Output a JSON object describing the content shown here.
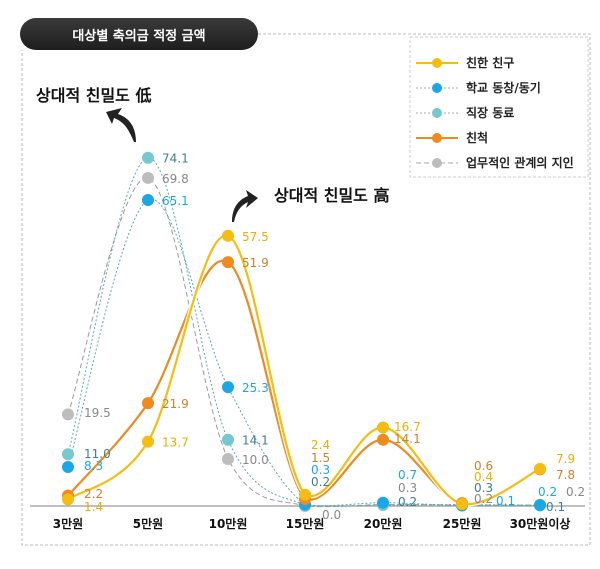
{
  "chart_data": {
    "type": "line",
    "title": "대상별 축의금 적정 금액",
    "categories": [
      "3만원",
      "5만원",
      "10만원",
      "15만원",
      "20만원",
      "25만원",
      "30만원이상"
    ],
    "ylim": [
      0,
      80
    ],
    "grid": false,
    "legend_position": "top-right",
    "series": [
      {
        "name": "친한 친구",
        "color": "#f5bd12",
        "label_color": "#e9b100",
        "style": "solid",
        "values": [
          1.4,
          13.7,
          57.5,
          2.4,
          16.7,
          0.4,
          7.9
        ]
      },
      {
        "name": "학교 동창/동기",
        "color": "#1ba6e4",
        "label_color": "#1ba6e4",
        "style": "dotted",
        "values": [
          8.3,
          65.1,
          25.3,
          0.3,
          0.7,
          0.1,
          0.2
        ]
      },
      {
        "name": "직장 동료",
        "color": "#76c8cf",
        "label_color": "#3f7f8c",
        "style": "dotted",
        "values": [
          11.0,
          74.1,
          14.1,
          0.2,
          0.2,
          0.3,
          0.1
        ]
      },
      {
        "name": "친척",
        "color": "#ee8a1e",
        "label_color": "#d07f2a",
        "style": "solid",
        "values": [
          2.2,
          21.9,
          51.9,
          1.5,
          14.1,
          0.6,
          7.8
        ]
      },
      {
        "name": "업무적인 관계의 지인",
        "color": "#bdbdbd",
        "label_color": "#888888",
        "style": "dashed",
        "values": [
          19.5,
          69.8,
          10.0,
          0.0,
          0.3,
          0.2,
          0.2
        ]
      }
    ],
    "annotations": [
      "상대적 친밀도 低",
      "상대적 친밀도 高"
    ]
  }
}
